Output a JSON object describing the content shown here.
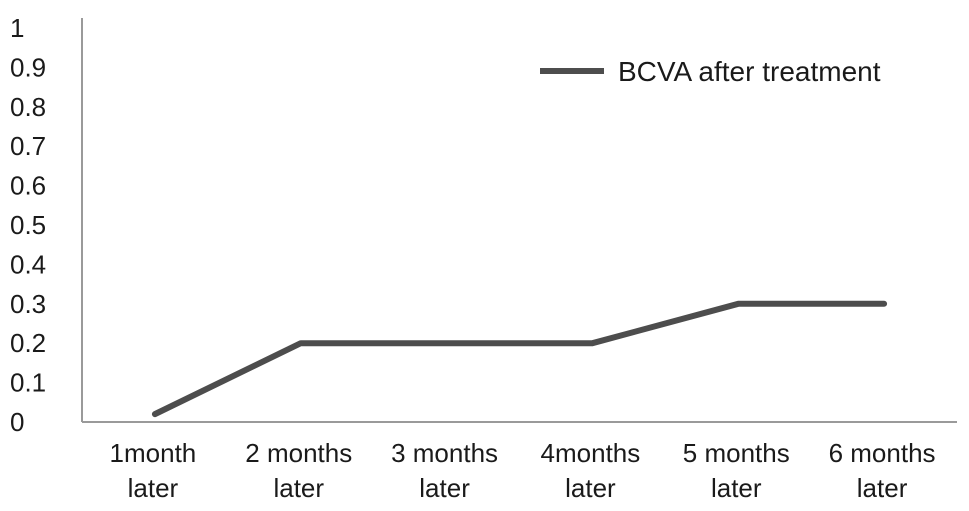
{
  "chart_data": {
    "type": "line",
    "categories": [
      [
        "1month",
        "later"
      ],
      [
        "2 months",
        "later"
      ],
      [
        "3 months",
        "later"
      ],
      [
        "4months",
        "later"
      ],
      [
        "5 months",
        "later"
      ],
      [
        "6 months",
        "later"
      ]
    ],
    "series": [
      {
        "name": "BCVA after treatment",
        "values": [
          0.02,
          0.2,
          0.2,
          0.2,
          0.3,
          0.3
        ],
        "color": "#4d4d4d"
      }
    ],
    "yticks": [
      "0",
      "0.1",
      "0.2",
      "0.3",
      "0.4",
      "0.5",
      "0.6",
      "0.7",
      "0.8",
      "0.9",
      "1"
    ],
    "ylim": [
      0,
      1
    ],
    "grid": false,
    "legend_position": "top-right",
    "axis_color": "#9a9a9a"
  }
}
